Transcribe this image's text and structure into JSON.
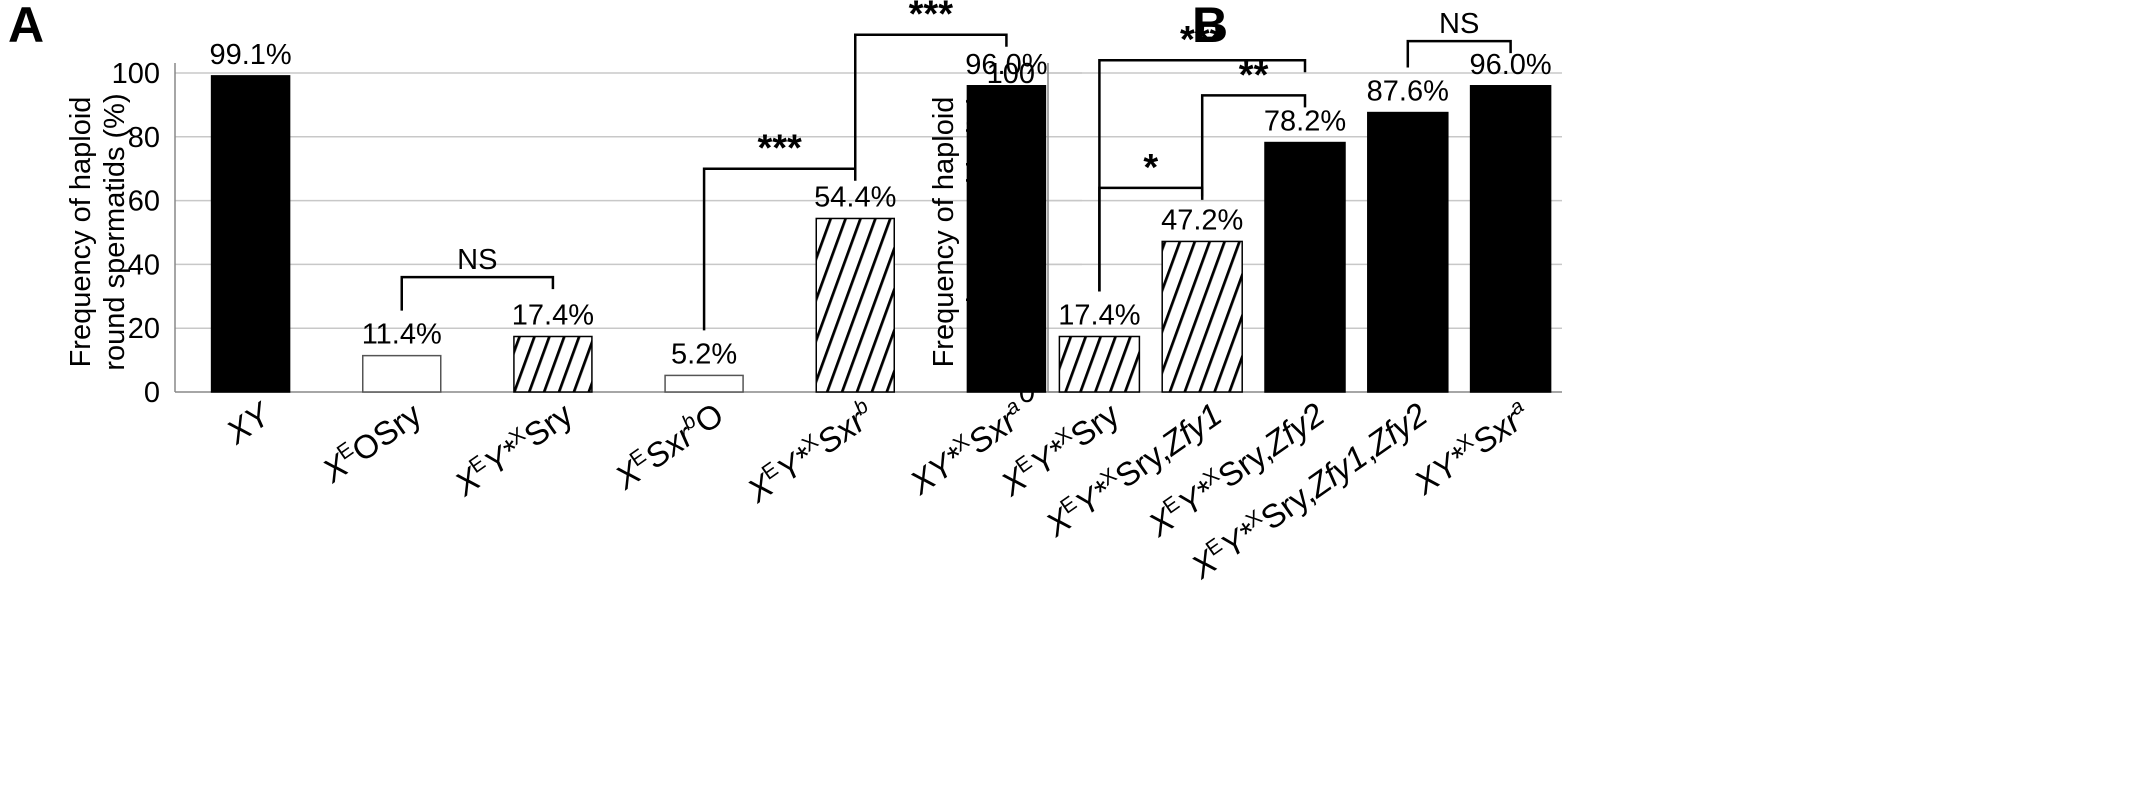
{
  "chart_data": [
    {
      "panel": "A",
      "type": "bar",
      "ylabel": [
        "Frequency of haploid",
        "round spermatids (%)"
      ],
      "ylim": [
        0,
        100
      ],
      "yticks": [
        0,
        20,
        40,
        60,
        80,
        100
      ],
      "grid": true,
      "categories": [
        {
          "label": [
            {
              "t": "XY",
              "i": true
            }
          ]
        },
        {
          "label": [
            {
              "t": "X",
              "i": true
            },
            {
              "t": "E",
              "sup": true
            },
            {
              "t": "OSry"
            }
          ]
        },
        {
          "label": [
            {
              "t": "X",
              "i": true
            },
            {
              "t": "E",
              "sup": true
            },
            {
              "t": "Y*",
              "i": true
            },
            {
              "t": "X",
              "sup": true
            },
            {
              "t": "Sry"
            }
          ]
        },
        {
          "label": [
            {
              "t": "X",
              "i": true
            },
            {
              "t": "E",
              "sup": true
            },
            {
              "t": "Sxr",
              "i": true
            },
            {
              "t": "b",
              "sup": true,
              "i": true
            },
            {
              "t": "O"
            }
          ]
        },
        {
          "label": [
            {
              "t": "X",
              "i": true
            },
            {
              "t": "E",
              "sup": true
            },
            {
              "t": "Y*",
              "i": true
            },
            {
              "t": "X",
              "sup": true
            },
            {
              "t": "Sxr",
              "i": true
            },
            {
              "t": "b",
              "sup": true,
              "i": true
            }
          ]
        },
        {
          "label": [
            {
              "t": "XY*",
              "i": true
            },
            {
              "t": "X",
              "sup": true
            },
            {
              "t": "Sxr",
              "i": true
            },
            {
              "t": "a",
              "sup": true,
              "i": true
            }
          ]
        }
      ],
      "values": [
        99.1,
        11.4,
        17.4,
        5.2,
        54.4,
        96.0
      ],
      "value_labels": [
        "99.1%",
        "11.4%",
        "17.4%",
        "5.2%",
        "54.4%",
        "96.0%"
      ],
      "fills": [
        "solid",
        "open",
        "hatched",
        "open",
        "hatched",
        "solid"
      ],
      "significance": [
        {
          "from": 1,
          "to": 2,
          "level": 36,
          "label": "NS"
        },
        {
          "from": 3,
          "to": 4,
          "level": 70,
          "label": "***"
        },
        {
          "from": 4,
          "to": 5,
          "level": 112,
          "label": "***"
        }
      ]
    },
    {
      "panel": "B",
      "type": "bar",
      "ylabel": [
        "Frequency of haploid",
        "round spermatids (%)"
      ],
      "ylim": [
        0,
        100
      ],
      "yticks": [
        0,
        20,
        40,
        60,
        80,
        100
      ],
      "grid": true,
      "categories": [
        {
          "label": [
            {
              "t": "X",
              "i": true
            },
            {
              "t": "E",
              "sup": true
            },
            {
              "t": "Y*",
              "i": true
            },
            {
              "t": "X",
              "sup": true
            },
            {
              "t": "Sry"
            }
          ]
        },
        {
          "label": [
            {
              "t": "X",
              "i": true
            },
            {
              "t": "E",
              "sup": true
            },
            {
              "t": "Y*",
              "i": true
            },
            {
              "t": "X",
              "sup": true
            },
            {
              "t": "Sry,"
            },
            {
              "t": "Zfy1",
              "i": true
            }
          ]
        },
        {
          "label": [
            {
              "t": "X",
              "i": true
            },
            {
              "t": "E",
              "sup": true
            },
            {
              "t": "Y*",
              "i": true
            },
            {
              "t": "X",
              "sup": true
            },
            {
              "t": "Sry,"
            },
            {
              "t": "Zfy2",
              "i": true
            }
          ]
        },
        {
          "label": [
            {
              "t": "X",
              "i": true
            },
            {
              "t": "E",
              "sup": true
            },
            {
              "t": "Y*",
              "i": true
            },
            {
              "t": "X",
              "sup": true
            },
            {
              "t": "Sry,"
            },
            {
              "t": "Zfy1",
              "i": true
            },
            {
              "t": ","
            },
            {
              "t": "Zfy2",
              "i": true
            }
          ]
        },
        {
          "label": [
            {
              "t": "XY*",
              "i": true
            },
            {
              "t": "X",
              "sup": true
            },
            {
              "t": "Sxr",
              "i": true
            },
            {
              "t": "a",
              "sup": true,
              "i": true
            }
          ]
        }
      ],
      "values": [
        17.4,
        47.2,
        78.2,
        87.6,
        96.0
      ],
      "value_labels": [
        "17.4%",
        "47.2%",
        "78.2%",
        "87.6%",
        "96.0%"
      ],
      "fills": [
        "hatched",
        "hatched",
        "solid",
        "solid",
        "solid"
      ],
      "significance": [
        {
          "from": 0,
          "to": 1,
          "level": 64,
          "label": "*"
        },
        {
          "from": 1,
          "to": 2,
          "level": 93,
          "label": "**"
        },
        {
          "from": 0,
          "to": 2,
          "level": 104,
          "label": "***"
        },
        {
          "from": 3,
          "to": 4,
          "level": 110,
          "label": "NS"
        }
      ]
    }
  ]
}
